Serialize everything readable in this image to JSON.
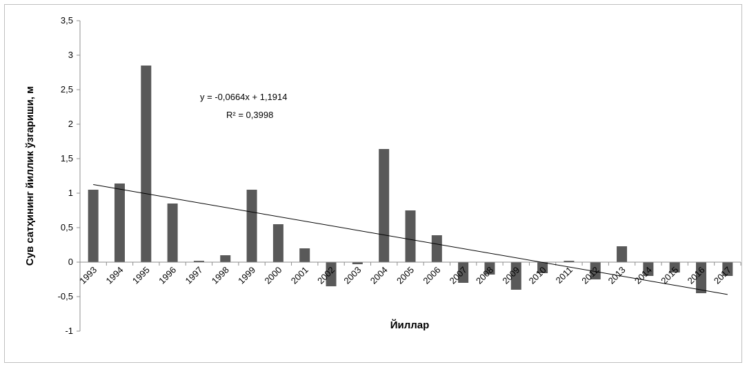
{
  "chart_data": {
    "type": "bar",
    "title": "",
    "xlabel": "Йиллар",
    "ylabel": "Сув сатҳининг йиллик ўзгариши, м",
    "ylim": [
      -1,
      3.5
    ],
    "ytick_step": 0.5,
    "ytick_labels": [
      "-1",
      "-0,5",
      "0",
      "0,5",
      "1",
      "1,5",
      "2",
      "2,5",
      "3",
      "3,5"
    ],
    "grid": false,
    "legend": "none",
    "bar_color": "#595959",
    "categories": [
      "1993",
      "1994",
      "1995",
      "1996",
      "1997",
      "1998",
      "1999",
      "2000",
      "2001",
      "2002",
      "2003",
      "2004",
      "2005",
      "2006",
      "2007",
      "2008",
      "2009",
      "2010",
      "2011",
      "2012",
      "2013",
      "2014",
      "2015",
      "2016",
      "2017"
    ],
    "series": [
      {
        "values": [
          1.05,
          1.14,
          2.85,
          0.85,
          0.02,
          0.1,
          1.05,
          0.55,
          0.2,
          -0.35,
          -0.03,
          1.64,
          0.75,
          0.39,
          -0.3,
          -0.18,
          -0.4,
          -0.16,
          0.02,
          -0.25,
          0.23,
          -0.2,
          -0.15,
          -0.45,
          -0.2
        ]
      }
    ],
    "trendline": {
      "type": "linear",
      "slope": -0.0664,
      "intercept": 1.1914,
      "equation": "y = -0,0664x + 1,1914",
      "r_squared": "R² = 0,3998"
    }
  }
}
